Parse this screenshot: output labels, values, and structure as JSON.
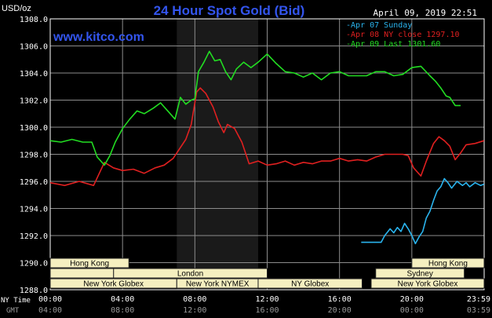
{
  "chart_data": {
    "type": "line",
    "title": "24 Hour Spot Gold (Bid)",
    "website": "www.kitco.com",
    "timestamp": "April 09, 2019 22:51",
    "ylabel": "USD/oz",
    "ylim": [
      1288,
      1308
    ],
    "yticks": [
      "1308.0",
      "1306.0",
      "1304.0",
      "1302.0",
      "1300.0",
      "1298.0",
      "1296.0",
      "1294.0",
      "1292.0",
      "1290.0",
      "1288.0"
    ],
    "xlim": [
      0,
      24
    ],
    "xtick_hours": [
      0,
      4,
      8,
      12,
      16,
      20,
      24
    ],
    "xticks_ny": [
      "00:00",
      "04:00",
      "08:00",
      "12:00",
      "16:00",
      "20:00",
      "23:59"
    ],
    "xticks_gmt": [
      "04:00",
      "08:00",
      "12:00",
      "16:00",
      "20:00",
      "00:00",
      "03:59"
    ],
    "xrow_label_ny": "NY Time",
    "xrow_label_gmt": "GMT",
    "grid": true,
    "legend_position": "top-right",
    "highlight_range": [
      7.0,
      11.5
    ],
    "series": [
      {
        "name": "Apr 07 Sunday",
        "color": "#2ab4ee",
        "x": [
          17.2,
          18.3,
          18.5,
          18.8,
          19.0,
          19.2,
          19.4,
          19.6,
          19.8,
          20.0,
          20.2,
          20.4,
          20.6,
          20.8,
          21.0,
          21.2,
          21.4,
          21.6,
          21.8,
          22.0,
          22.2,
          22.5,
          22.8,
          23.0,
          23.2,
          23.5,
          23.8,
          23.99
        ],
        "y": [
          1291.5,
          1291.5,
          1292.0,
          1292.5,
          1292.2,
          1292.6,
          1292.3,
          1292.9,
          1292.5,
          1292.0,
          1291.4,
          1291.9,
          1292.3,
          1293.3,
          1293.8,
          1294.6,
          1295.3,
          1295.6,
          1296.2,
          1295.9,
          1295.5,
          1296.0,
          1295.7,
          1295.9,
          1295.6,
          1295.9,
          1295.7,
          1295.8
        ]
      },
      {
        "name": "Apr 08 NY close 1297.10",
        "color": "#e02020",
        "x": [
          0.0,
          0.8,
          1.6,
          2.4,
          3.0,
          3.5,
          4.0,
          4.6,
          5.2,
          5.8,
          6.3,
          6.8,
          7.0,
          7.5,
          7.8,
          8.1,
          8.3,
          8.6,
          9.0,
          9.3,
          9.6,
          9.8,
          10.2,
          10.6,
          11.0,
          11.5,
          12.0,
          12.5,
          13.0,
          13.5,
          14.0,
          14.5,
          15.0,
          15.5,
          16.0,
          16.5,
          17.0,
          17.5,
          18.0,
          18.5,
          19.0,
          19.5,
          19.8,
          20.1,
          20.5,
          20.8,
          21.2,
          21.5,
          21.8,
          22.1,
          22.4,
          22.7,
          23.0,
          23.5,
          23.99
        ],
        "y": [
          1295.9,
          1295.7,
          1296.0,
          1295.7,
          1297.4,
          1297.0,
          1296.8,
          1296.9,
          1296.6,
          1297.0,
          1297.2,
          1297.7,
          1298.1,
          1299.1,
          1300.2,
          1302.6,
          1302.9,
          1302.5,
          1301.5,
          1300.4,
          1299.6,
          1300.2,
          1299.9,
          1298.9,
          1297.3,
          1297.5,
          1297.2,
          1297.3,
          1297.5,
          1297.2,
          1297.4,
          1297.3,
          1297.5,
          1297.5,
          1297.7,
          1297.5,
          1297.6,
          1297.5,
          1297.8,
          1298.0,
          1298.0,
          1298.0,
          1297.9,
          1297.0,
          1296.4,
          1297.5,
          1298.8,
          1299.3,
          1299.0,
          1298.6,
          1297.6,
          1298.1,
          1298.7,
          1298.8,
          1299.0
        ]
      },
      {
        "name": "Apr 09 Last 1301.60",
        "color": "#22dd22",
        "x": [
          0.0,
          0.6,
          1.2,
          1.8,
          2.3,
          2.6,
          3.0,
          3.3,
          3.6,
          4.0,
          4.4,
          4.8,
          5.2,
          5.7,
          6.1,
          6.5,
          6.9,
          7.2,
          7.5,
          7.8,
          8.0,
          8.2,
          8.5,
          8.8,
          9.1,
          9.4,
          9.7,
          10.0,
          10.3,
          10.7,
          11.1,
          11.5,
          12.0,
          12.5,
          13.0,
          13.5,
          14.0,
          14.5,
          15.0,
          15.5,
          16.0,
          16.5,
          17.0,
          17.5,
          18.0,
          18.5,
          19.0,
          19.5,
          20.0,
          20.5,
          21.0,
          21.3,
          21.6,
          21.9,
          22.1,
          22.4,
          22.7
        ],
        "y": [
          1299.0,
          1298.9,
          1299.1,
          1298.9,
          1298.9,
          1297.8,
          1297.2,
          1297.9,
          1298.9,
          1299.9,
          1300.6,
          1301.2,
          1301.0,
          1301.4,
          1301.8,
          1301.2,
          1300.6,
          1302.2,
          1301.7,
          1302.0,
          1302.1,
          1304.1,
          1304.8,
          1305.6,
          1304.9,
          1305.0,
          1304.1,
          1303.5,
          1304.3,
          1304.8,
          1304.4,
          1304.8,
          1305.4,
          1304.7,
          1304.1,
          1304.0,
          1303.7,
          1304.0,
          1303.5,
          1304.0,
          1304.1,
          1303.8,
          1303.8,
          1303.8,
          1304.1,
          1304.1,
          1303.8,
          1303.9,
          1304.4,
          1304.5,
          1303.8,
          1303.4,
          1302.9,
          1302.3,
          1302.2,
          1301.6,
          1301.6
        ]
      }
    ],
    "sessions": [
      {
        "label": "Hong Kong",
        "row": 0,
        "start": 0,
        "end": 4.35
      },
      {
        "label": "Hong Kong",
        "row": 0,
        "start": 20.0,
        "end": 24.0
      },
      {
        "label": "London",
        "row": 1,
        "start": 3.5,
        "end": 12.0
      },
      {
        "label": "Sydney",
        "row": 1,
        "start": 18.0,
        "end": 22.9
      },
      {
        "label": "",
        "row": 1,
        "start": 0,
        "end": 3.5
      },
      {
        "label": "New York Globex",
        "row": 2,
        "start": 0,
        "end": 7.0
      },
      {
        "label": "New York NYMEX",
        "row": 2,
        "start": 7.0,
        "end": 11.5
      },
      {
        "label": "NY Globex",
        "row": 2,
        "start": 11.5,
        "end": 17.25
      },
      {
        "label": "New York Globex",
        "row": 2,
        "start": 17.75,
        "end": 24.0
      }
    ]
  }
}
